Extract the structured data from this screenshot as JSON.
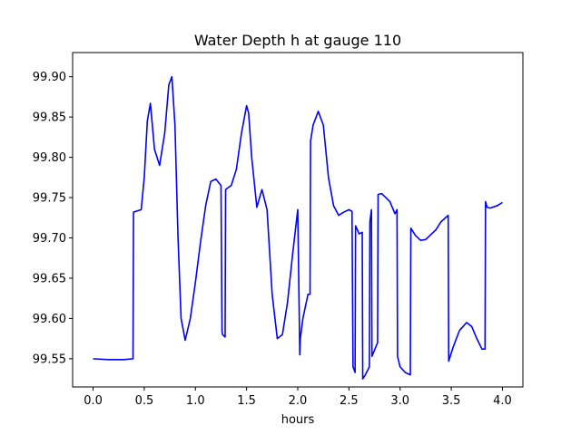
{
  "chart_data": {
    "type": "line",
    "title": "Water Depth h at gauge 110",
    "xlabel": "hours",
    "ylabel": "",
    "xlim": [
      -0.2,
      4.2
    ],
    "ylim": [
      99.515,
      99.93
    ],
    "x_ticks": [
      0.0,
      0.5,
      1.0,
      1.5,
      2.0,
      2.5,
      3.0,
      3.5,
      4.0
    ],
    "x_tick_labels": [
      "0.0",
      "0.5",
      "1.0",
      "1.5",
      "2.0",
      "2.5",
      "3.0",
      "3.5",
      "4.0"
    ],
    "y_ticks": [
      99.55,
      99.6,
      99.65,
      99.7,
      99.75,
      99.8,
      99.85,
      99.9
    ],
    "y_tick_labels": [
      "99.55",
      "99.60",
      "99.65",
      "99.70",
      "99.75",
      "99.80",
      "99.85",
      "99.90"
    ],
    "grid": false,
    "line_color": "#0000ff",
    "series": [
      {
        "x": [
          0.0,
          0.15,
          0.3,
          0.39,
          0.395,
          0.47,
          0.5,
          0.53,
          0.56,
          0.6,
          0.65,
          0.7,
          0.74,
          0.77,
          0.8,
          0.83,
          0.86,
          0.9,
          0.95,
          1.0,
          1.05,
          1.1,
          1.15,
          1.2,
          1.25,
          1.26,
          1.265,
          1.29,
          1.295,
          1.35,
          1.4,
          1.45,
          1.5,
          1.52,
          1.55,
          1.6,
          1.65,
          1.7,
          1.75,
          1.8,
          1.85,
          1.9,
          1.95,
          2.0,
          2.02,
          2.025,
          2.05,
          2.1,
          2.12,
          2.125,
          2.15,
          2.2,
          2.25,
          2.3,
          2.35,
          2.4,
          2.45,
          2.5,
          2.53,
          2.54,
          2.56,
          2.565,
          2.6,
          2.63,
          2.635,
          2.66,
          2.7,
          2.705,
          2.715,
          2.72,
          2.725,
          2.78,
          2.785,
          2.82,
          2.9,
          2.95,
          2.97,
          2.975,
          3.0,
          3.05,
          3.1,
          3.105,
          3.15,
          3.2,
          3.25,
          3.3,
          3.35,
          3.4,
          3.47,
          3.475,
          3.52,
          3.58,
          3.65,
          3.7,
          3.75,
          3.8,
          3.83,
          3.835,
          3.85,
          3.88,
          3.95,
          4.0
        ],
        "y": [
          99.55,
          99.549,
          99.549,
          99.55,
          99.732,
          99.735,
          99.775,
          99.845,
          99.867,
          99.81,
          99.79,
          99.83,
          99.89,
          99.9,
          99.84,
          99.7,
          99.6,
          99.573,
          99.6,
          99.645,
          99.695,
          99.74,
          99.77,
          99.773,
          99.765,
          99.584,
          99.58,
          99.577,
          99.76,
          99.765,
          99.785,
          99.83,
          99.864,
          99.855,
          99.8,
          99.738,
          99.76,
          99.735,
          99.63,
          99.575,
          99.58,
          99.62,
          99.68,
          99.735,
          99.555,
          99.575,
          99.6,
          99.63,
          99.63,
          99.82,
          99.84,
          99.857,
          99.84,
          99.775,
          99.74,
          99.728,
          99.732,
          99.735,
          99.733,
          99.54,
          99.533,
          99.715,
          99.705,
          99.707,
          99.525,
          99.53,
          99.54,
          99.72,
          99.73,
          99.735,
          99.553,
          99.57,
          99.754,
          99.755,
          99.745,
          99.73,
          99.735,
          99.553,
          99.54,
          99.533,
          99.53,
          99.712,
          99.703,
          99.697,
          99.698,
          99.704,
          99.71,
          99.72,
          99.728,
          99.547,
          99.565,
          99.585,
          99.595,
          99.59,
          99.575,
          99.562,
          99.562,
          99.745,
          99.738,
          99.737,
          99.74,
          99.744
        ]
      }
    ]
  }
}
